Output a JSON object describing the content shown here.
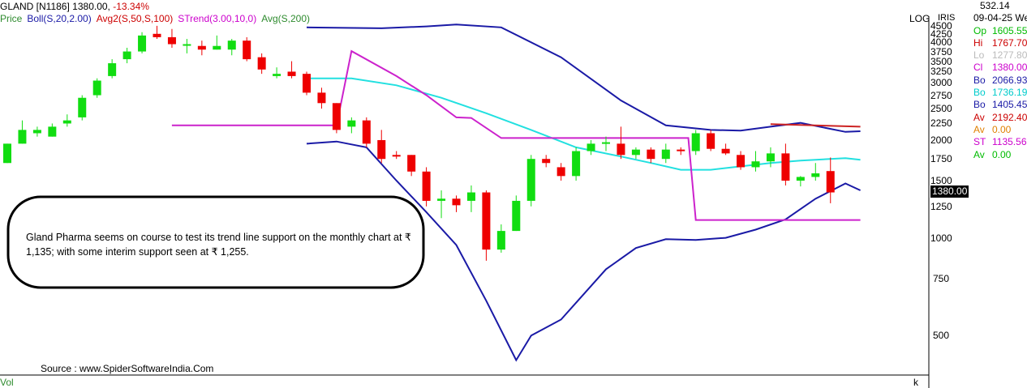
{
  "header": {
    "symbol": "GLAND [N1186]",
    "price": "1380.00,",
    "change": "-13.34%",
    "indicators": [
      {
        "label": "Price",
        "color": "#2e8b2e"
      },
      {
        "label": "Boll(S,20,2.00)",
        "color": "#1a1aa6"
      },
      {
        "label": "Avg2(S,50,S,100)",
        "color": "#cc0000"
      },
      {
        "label": "STrend(3.00,10,0)",
        "color": "#cc00cc"
      },
      {
        "label": "Avg(S,200)",
        "color": "#2e8b2e"
      }
    ]
  },
  "axis_labels": {
    "log": "LOG",
    "iris": "IRIS",
    "vol": "Vol",
    "k": "k"
  },
  "annotation": "Gland Pharma seems on course to test its trend line support on the monthly chart at ₹ 1,135; with some interim support seen at ₹ 1,255.",
  "source": "Source : www.SpiderSoftwareIndia.Com",
  "last_price_tag": "1380.00",
  "panel": {
    "top_value": "532.14",
    "date": "09-04-25 We",
    "rows": [
      {
        "k": "Op",
        "v": "1605.55",
        "color": "#00bb00"
      },
      {
        "k": "Hi",
        "v": "1767.70",
        "color": "#cc0000"
      },
      {
        "k": "Lo",
        "v": "1277.80",
        "color": "#bbbbbb"
      },
      {
        "k": "Cl",
        "v": "1380.00",
        "color": "#cc00cc"
      },
      {
        "k": "Bo",
        "v": "2066.93",
        "color": "#1a1aa6"
      },
      {
        "k": "Bo",
        "v": "1736.19",
        "color": "#00cccc"
      },
      {
        "k": "Bo",
        "v": "1405.45",
        "color": "#1a1aa6"
      },
      {
        "k": "Av",
        "v": "2192.40",
        "color": "#cc0000"
      },
      {
        "k": "Av",
        "v": "0.00",
        "color": "#e08000"
      },
      {
        "k": "ST",
        "v": "1135.56",
        "color": "#cc00cc"
      },
      {
        "k": "Av",
        "v": "0.00",
        "color": "#00bb00"
      }
    ]
  },
  "colors": {
    "up": "#11dd11",
    "down": "#ee0000",
    "boll_outer": "#1a1aa6",
    "boll_mid": "#22e0e0",
    "strend": "#cc22cc",
    "avg2": "#cc2222"
  },
  "chart_data": {
    "type": "candlestick",
    "scale": "log",
    "yticks": [
      500,
      750,
      1000,
      1250,
      1500,
      1750,
      2000,
      2250,
      2500,
      2750,
      3000,
      3250,
      3500,
      3750,
      4000,
      4250,
      4500
    ],
    "ylim": [
      380,
      4600
    ],
    "candles": [
      {
        "o": 1700,
        "h": 1950,
        "l": 1700,
        "c": 1950
      },
      {
        "o": 1950,
        "h": 2300,
        "l": 1950,
        "c": 2150
      },
      {
        "o": 2100,
        "h": 2200,
        "l": 2050,
        "c": 2150
      },
      {
        "o": 2050,
        "h": 2250,
        "l": 2050,
        "c": 2200
      },
      {
        "o": 2250,
        "h": 2400,
        "l": 2200,
        "c": 2300
      },
      {
        "o": 2350,
        "h": 2750,
        "l": 2300,
        "c": 2700
      },
      {
        "o": 2750,
        "h": 3100,
        "l": 2700,
        "c": 3050
      },
      {
        "o": 3150,
        "h": 3550,
        "l": 3100,
        "c": 3450
      },
      {
        "o": 3550,
        "h": 3850,
        "l": 3450,
        "c": 3750
      },
      {
        "o": 3750,
        "h": 4300,
        "l": 3700,
        "c": 4200
      },
      {
        "o": 4250,
        "h": 4500,
        "l": 4100,
        "c": 4150
      },
      {
        "o": 4150,
        "h": 4400,
        "l": 3850,
        "c": 3950
      },
      {
        "o": 3950,
        "h": 4100,
        "l": 3700,
        "c": 3950
      },
      {
        "o": 3900,
        "h": 4050,
        "l": 3650,
        "c": 3800
      },
      {
        "o": 3800,
        "h": 4200,
        "l": 3800,
        "c": 3900
      },
      {
        "o": 3800,
        "h": 4100,
        "l": 3650,
        "c": 4050
      },
      {
        "o": 4050,
        "h": 4150,
        "l": 3500,
        "c": 3550
      },
      {
        "o": 3600,
        "h": 3700,
        "l": 3200,
        "c": 3300
      },
      {
        "o": 3150,
        "h": 3350,
        "l": 3100,
        "c": 3200
      },
      {
        "o": 3250,
        "h": 3500,
        "l": 3100,
        "c": 3150
      },
      {
        "o": 3200,
        "h": 3250,
        "l": 2750,
        "c": 2800
      },
      {
        "o": 2800,
        "h": 2900,
        "l": 2500,
        "c": 2600
      },
      {
        "o": 2600,
        "h": 2600,
        "l": 2100,
        "c": 2150
      },
      {
        "o": 2200,
        "h": 2350,
        "l": 2100,
        "c": 2300
      },
      {
        "o": 2300,
        "h": 2350,
        "l": 1900,
        "c": 1950
      },
      {
        "o": 2000,
        "h": 2150,
        "l": 1700,
        "c": 1750
      },
      {
        "o": 1800,
        "h": 1850,
        "l": 1750,
        "c": 1780
      },
      {
        "o": 1800,
        "h": 1800,
        "l": 1550,
        "c": 1600
      },
      {
        "o": 1600,
        "h": 1650,
        "l": 1250,
        "c": 1300
      },
      {
        "o": 1300,
        "h": 1400,
        "l": 1150,
        "c": 1320
      },
      {
        "o": 1320,
        "h": 1350,
        "l": 1200,
        "c": 1260
      },
      {
        "o": 1300,
        "h": 1450,
        "l": 1200,
        "c": 1380
      },
      {
        "o": 1380,
        "h": 1400,
        "l": 850,
        "c": 920
      },
      {
        "o": 920,
        "h": 1100,
        "l": 900,
        "c": 1050
      },
      {
        "o": 1050,
        "h": 1350,
        "l": 1050,
        "c": 1300
      },
      {
        "o": 1300,
        "h": 1800,
        "l": 1250,
        "c": 1750
      },
      {
        "o": 1750,
        "h": 1800,
        "l": 1650,
        "c": 1700
      },
      {
        "o": 1650,
        "h": 1700,
        "l": 1500,
        "c": 1550
      },
      {
        "o": 1550,
        "h": 1900,
        "l": 1500,
        "c": 1850
      },
      {
        "o": 1850,
        "h": 2000,
        "l": 1800,
        "c": 1950
      },
      {
        "o": 1950,
        "h": 2050,
        "l": 1850,
        "c": 1970
      },
      {
        "o": 1950,
        "h": 2200,
        "l": 1750,
        "c": 1800
      },
      {
        "o": 1800,
        "h": 1900,
        "l": 1750,
        "c": 1870
      },
      {
        "o": 1870,
        "h": 1900,
        "l": 1700,
        "c": 1750
      },
      {
        "o": 1750,
        "h": 1950,
        "l": 1700,
        "c": 1870
      },
      {
        "o": 1870,
        "h": 1900,
        "l": 1800,
        "c": 1850
      },
      {
        "o": 1850,
        "h": 2150,
        "l": 1800,
        "c": 2100
      },
      {
        "o": 2100,
        "h": 2150,
        "l": 1850,
        "c": 1880
      },
      {
        "o": 1880,
        "h": 1950,
        "l": 1800,
        "c": 1820
      },
      {
        "o": 1800,
        "h": 1850,
        "l": 1620,
        "c": 1650
      },
      {
        "o": 1650,
        "h": 1850,
        "l": 1600,
        "c": 1720
      },
      {
        "o": 1720,
        "h": 1900,
        "l": 1650,
        "c": 1820
      },
      {
        "o": 1820,
        "h": 1950,
        "l": 1450,
        "c": 1500
      },
      {
        "o": 1500,
        "h": 1550,
        "l": 1440,
        "c": 1540
      },
      {
        "o": 1540,
        "h": 1700,
        "l": 1500,
        "c": 1580
      },
      {
        "o": 1605.55,
        "h": 1767.7,
        "l": 1277.8,
        "c": 1380
      }
    ],
    "boll_upper": [
      [
        20,
        4450
      ],
      [
        25,
        4420
      ],
      [
        28,
        4480
      ],
      [
        30,
        4540
      ],
      [
        33,
        4450
      ],
      [
        37,
        3600
      ],
      [
        41,
        2650
      ],
      [
        44,
        2220
      ],
      [
        47,
        2150
      ],
      [
        49,
        2140
      ],
      [
        51,
        2200
      ],
      [
        53,
        2260
      ],
      [
        56,
        2120
      ],
      [
        57,
        2130
      ]
    ],
    "boll_lower": [
      [
        20,
        1950
      ],
      [
        22,
        1980
      ],
      [
        24,
        1900
      ],
      [
        26,
        1500
      ],
      [
        28,
        1200
      ],
      [
        30,
        950
      ],
      [
        32,
        640
      ],
      [
        34,
        420
      ],
      [
        35,
        500
      ],
      [
        37,
        560
      ],
      [
        40,
        800
      ],
      [
        42,
        930
      ],
      [
        44,
        990
      ],
      [
        46,
        985
      ],
      [
        48,
        1000
      ],
      [
        50,
        1060
      ],
      [
        52,
        1140
      ],
      [
        54,
        1320
      ],
      [
        56,
        1470
      ],
      [
        57,
        1400
      ]
    ],
    "boll_mid": [
      [
        20,
        3100
      ],
      [
        23,
        3100
      ],
      [
        26,
        2950
      ],
      [
        29,
        2700
      ],
      [
        32,
        2420
      ],
      [
        35,
        2150
      ],
      [
        38,
        1900
      ],
      [
        41,
        1780
      ],
      [
        43,
        1700
      ],
      [
        45,
        1620
      ],
      [
        47,
        1620
      ],
      [
        49,
        1660
      ],
      [
        51,
        1700
      ],
      [
        53,
        1730
      ],
      [
        56,
        1760
      ],
      [
        57,
        1740
      ]
    ],
    "strend": [
      [
        11,
        2220
      ],
      [
        22,
        2220
      ],
      [
        23,
        3760
      ],
      [
        26,
        3150
      ],
      [
        28,
        2750
      ],
      [
        30,
        2350
      ],
      [
        31,
        2340
      ],
      [
        33,
        2030
      ],
      [
        45.5,
        2030
      ],
      [
        46,
        1135
      ],
      [
        57,
        1135
      ]
    ],
    "avg2": [
      [
        51,
        2240
      ],
      [
        57,
        2200
      ]
    ]
  }
}
